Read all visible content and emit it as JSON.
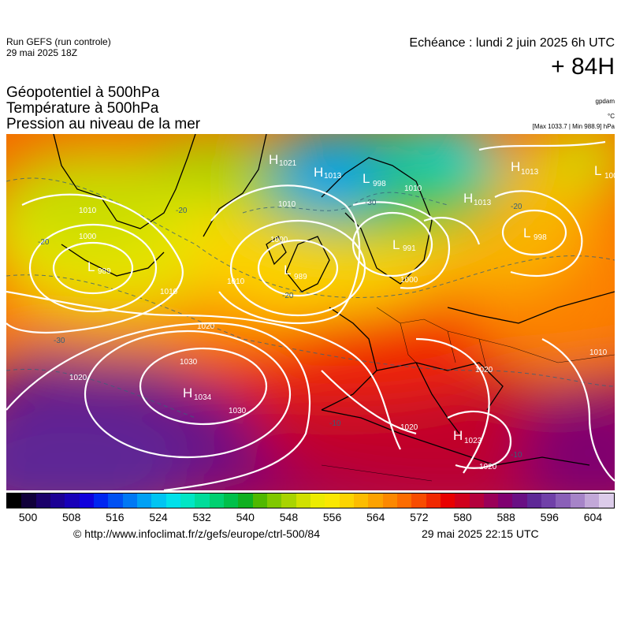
{
  "header": {
    "run_line1": "Run GEFS (run controle)",
    "run_line2": "29 mai 2025 18Z",
    "echeance": "Echéance : lundi 2 juin 2025 6h UTC",
    "lead": "+ 84H",
    "title1": "Géopotentiel à 500hPa",
    "title2": "Température à 500hPa",
    "title3": "Pression au niveau de la mer",
    "unit_gpdam": "gpdam",
    "unit_c": "°C",
    "maxmin": "[Max 1033.7 | Min 988.9] hPa"
  },
  "colorbar": {
    "colors": [
      "#000000",
      "#10003a",
      "#1a006a",
      "#1c0094",
      "#1800b8",
      "#1000dc",
      "#0026f0",
      "#0050f2",
      "#0078f4",
      "#00a0f4",
      "#00c4f2",
      "#00e0ea",
      "#00e6c4",
      "#00dc9a",
      "#00d070",
      "#00c04a",
      "#10b020",
      "#50b800",
      "#80c800",
      "#a8d400",
      "#d0e000",
      "#ecec00",
      "#fae800",
      "#fcd400",
      "#fcbc00",
      "#fca200",
      "#fc8800",
      "#fc6c00",
      "#f84c00",
      "#f02800",
      "#e80000",
      "#d0001c",
      "#b4003c",
      "#9a0058",
      "#800070",
      "#6a1084",
      "#5e2896",
      "#7040a8",
      "#8a60b8",
      "#a684c8",
      "#c2a8d8",
      "#dcccea"
    ],
    "ticks": [
      "500",
      "508",
      "516",
      "524",
      "532",
      "540",
      "548",
      "556",
      "564",
      "572",
      "580",
      "588",
      "596",
      "604"
    ]
  },
  "map": {
    "pressure_centers": [
      {
        "type": "H",
        "value": "1021",
        "name": "high-iceland"
      },
      {
        "type": "H",
        "value": "1013",
        "name": "high-svalbard"
      },
      {
        "type": "L",
        "value": "998",
        "name": "low-barents"
      },
      {
        "type": "H",
        "value": "1013",
        "name": "high-north-russia"
      },
      {
        "type": "H",
        "value": "1013",
        "name": "high-kara"
      },
      {
        "type": "L",
        "value": "100",
        "name": "low-far-east"
      },
      {
        "type": "L",
        "value": "998",
        "name": "low-west-russia"
      },
      {
        "type": "L",
        "value": "989",
        "name": "low-canada"
      },
      {
        "type": "L",
        "value": "989",
        "name": "low-uk"
      },
      {
        "type": "L",
        "value": "991",
        "name": "low-scandinavia"
      },
      {
        "type": "H",
        "value": "1034",
        "name": "high-azores"
      },
      {
        "type": "H",
        "value": "1023",
        "name": "high-mediterranean"
      }
    ],
    "isobar_labels": [
      "1010",
      "1000",
      "1010",
      "1010",
      "1000",
      "1020",
      "1030",
      "1030",
      "1020",
      "1020",
      "1020",
      "1020",
      "1010",
      "1010",
      "1010",
      "1000"
    ],
    "isotherm_labels": [
      "-20",
      "-30",
      "-20",
      "-10",
      "-20",
      "-10",
      "-30",
      "-20"
    ]
  },
  "footer": {
    "url": "© http://www.infoclimat.fr/z/gefs/europe/ctrl-500/84",
    "generated": "29 mai 2025 22:15 UTC"
  }
}
